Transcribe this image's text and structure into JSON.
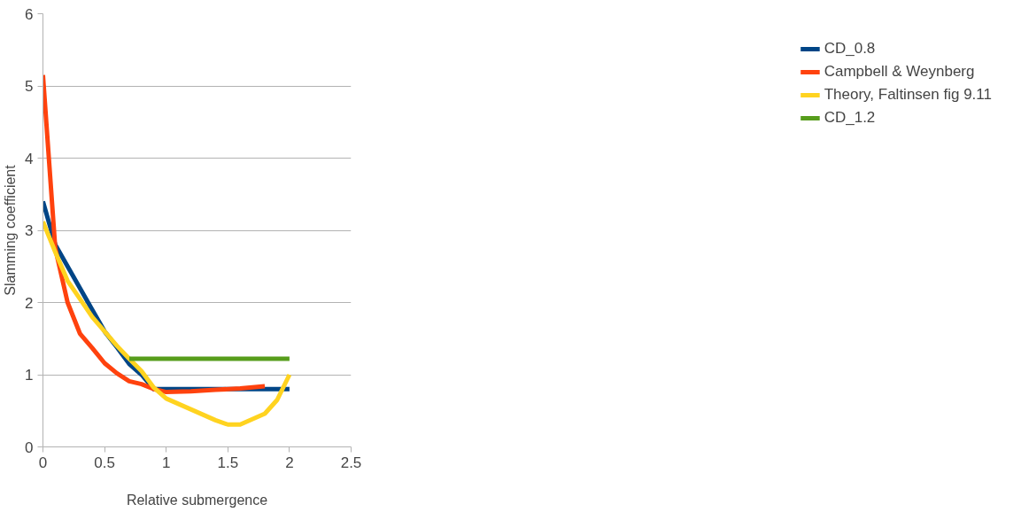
{
  "chart_data": {
    "type": "line",
    "xlabel": "Relative submergence",
    "ylabel": "Slamming coefficient",
    "xlim": [
      0,
      2.5
    ],
    "xticks": [
      0,
      0.5,
      1,
      1.5,
      2,
      2.5
    ],
    "ylim": [
      0,
      6
    ],
    "yticks": [
      0,
      1,
      2,
      3,
      4,
      5,
      6
    ],
    "grid": "y",
    "legend": "right",
    "line_style": "solid",
    "marker": "none",
    "series": [
      {
        "name": "CD_0.8",
        "color": "#004586",
        "x": [
          0,
          0.1,
          0.2,
          0.3,
          0.4,
          0.5,
          0.6,
          0.7,
          0.8,
          0.9,
          1.0,
          1.2,
          1.4,
          1.6,
          1.8,
          2.0
        ],
        "values": [
          3.4,
          2.8,
          2.5,
          2.2,
          1.9,
          1.6,
          1.38,
          1.15,
          1.0,
          0.8,
          0.8,
          0.8,
          0.8,
          0.8,
          0.8,
          0.8
        ]
      },
      {
        "name": "Campbell & Weynberg",
        "color": "#ff420e",
        "x": [
          0,
          0.1,
          0.2,
          0.3,
          0.4,
          0.5,
          0.6,
          0.7,
          0.8,
          0.9,
          1.0,
          1.2,
          1.4,
          1.6,
          1.8
        ],
        "values": [
          5.15,
          2.75,
          2.0,
          1.57,
          1.37,
          1.16,
          1.02,
          0.91,
          0.87,
          0.8,
          0.76,
          0.77,
          0.79,
          0.81,
          0.84
        ]
      },
      {
        "name": "Theory, Faltinsen fig 9.11",
        "color": "#ffd320",
        "x": [
          0,
          0.1,
          0.2,
          0.3,
          0.4,
          0.5,
          0.6,
          0.7,
          0.8,
          0.9,
          1.0,
          1.2,
          1.4,
          1.5,
          1.6,
          1.8,
          1.9,
          2.0
        ],
        "values": [
          3.12,
          2.7,
          2.3,
          2.05,
          1.8,
          1.6,
          1.4,
          1.22,
          1.05,
          0.82,
          0.67,
          0.52,
          0.37,
          0.31,
          0.31,
          0.46,
          0.65,
          1.0
        ]
      },
      {
        "name": "CD_1.2",
        "color": "#579d1c",
        "x": [
          0.7,
          0.8,
          0.9,
          1.0,
          1.1,
          1.2,
          1.3,
          1.4,
          1.5,
          1.6,
          1.7,
          1.8,
          1.9,
          2.0
        ],
        "values": [
          1.22,
          1.22,
          1.22,
          1.22,
          1.22,
          1.22,
          1.22,
          1.22,
          1.22,
          1.22,
          1.22,
          1.22,
          1.22,
          1.22
        ]
      }
    ]
  }
}
